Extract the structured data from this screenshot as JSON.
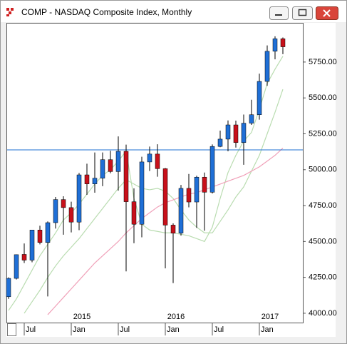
{
  "chart_data": {
    "type": "candlestick",
    "title": "COMP - NASDAQ Composite Index, Monthly",
    "categories": [
      null,
      null,
      "Jul",
      null,
      null,
      null,
      null,
      null,
      "Jan",
      null,
      null,
      null,
      null,
      null,
      "Jul",
      null,
      null,
      null,
      null,
      null,
      "Jan",
      null,
      null,
      null,
      null,
      null,
      "Jul",
      null,
      null,
      null,
      null,
      null,
      "Jan",
      null,
      null,
      null
    ],
    "years": [
      null,
      null,
      null,
      null,
      null,
      null,
      null,
      null,
      "2015",
      null,
      null,
      null,
      null,
      null,
      null,
      null,
      null,
      null,
      null,
      null,
      "2016",
      null,
      null,
      null,
      null,
      null,
      null,
      null,
      null,
      null,
      null,
      null,
      "2017",
      null,
      null,
      null
    ],
    "open": [
      4115,
      4243,
      4410,
      4370,
      4580,
      4493,
      4631,
      4792,
      4736,
      4635,
      4964,
      4901,
      4941,
      5070,
      4987,
      5128,
      4777,
      4620,
      5054,
      5109,
      5007,
      4614,
      4558,
      4870,
      4775,
      4948,
      4843,
      5162,
      5213,
      5312,
      5189,
      5324,
      5383,
      5615,
      5825,
      5912
    ],
    "high": [
      4250,
      4410,
      4486,
      4580,
      4610,
      4640,
      4810,
      4815,
      4777,
      4977,
      5042,
      5120,
      5120,
      5132,
      5232,
      5175,
      4870,
      5090,
      5161,
      5177,
      5012,
      4626,
      4894,
      4970,
      4958,
      4980,
      5176,
      5272,
      5343,
      5342,
      5384,
      5487,
      5669,
      5866,
      5929,
      5921
    ],
    "low": [
      4100,
      4235,
      4350,
      4355,
      4480,
      4117,
      4590,
      4547,
      4563,
      4579,
      4825,
      4840,
      4885,
      4975,
      4854,
      4292,
      4488,
      4529,
      4991,
      4951,
      4313,
      4210,
      4541,
      4738,
      4595,
      4575,
      4834,
      5157,
      5128,
      5154,
      5034,
      5312,
      5349,
      5584,
      5769,
      5805
    ],
    "close": [
      4243,
      4408,
      4370,
      4580,
      4493,
      4631,
      4792,
      4736,
      4635,
      4964,
      4901,
      4941,
      5070,
      4987,
      5128,
      4777,
      4620,
      5054,
      5109,
      5007,
      4614,
      4558,
      4870,
      4775,
      4948,
      4843,
      5162,
      5213,
      5312,
      5189,
      5324,
      5383,
      5615,
      5825,
      5912,
      5856
    ],
    "up_color": "#1f6fd6",
    "down_color": "#c8101a",
    "series": [
      {
        "color": "#b9dcb0",
        "values": [
          4020,
          4100,
          4200,
          4300,
          4400,
          4480,
          4560,
          4650,
          4700,
          4760,
          4830,
          4900,
          4960,
          5000,
          5060,
          5130,
          4800,
          4620,
          4580,
          4570,
          4560,
          4560,
          4550,
          4540,
          4520,
          4500,
          4600,
          4800,
          4980,
          5100,
          5200,
          5260,
          5420,
          5600,
          5700,
          5790
        ]
      },
      {
        "color": "#b9dcb0",
        "values": [
          null,
          null,
          4000,
          4080,
          4160,
          4250,
          4330,
          4400,
          4460,
          4520,
          4590,
          4660,
          4730,
          4800,
          4870,
          4930,
          4900,
          4870,
          4860,
          4870,
          4850,
          4800,
          4720,
          4650,
          4600,
          4560,
          4560,
          4640,
          4720,
          4810,
          4880,
          4990,
          5100,
          5250,
          5400,
          5560
        ]
      },
      {
        "color": "#f0a0b8",
        "values": [
          null,
          null,
          null,
          null,
          null,
          3990,
          4050,
          4110,
          4170,
          4230,
          4290,
          4350,
          4400,
          4450,
          4500,
          4560,
          4610,
          4660,
          4700,
          4740,
          4770,
          4790,
          4810,
          4830,
          4840,
          4860,
          4880,
          4900,
          4920,
          4940,
          4960,
          4990,
          5020,
          5060,
          5100,
          5150
        ]
      }
    ],
    "reference_line": {
      "value": 5138,
      "color": "#1c6fd0"
    },
    "ylim": [
      3935,
      6018
    ],
    "yticks": [
      {
        "value": 4000,
        "label": "4000.00"
      },
      {
        "value": 4250,
        "label": "4250.00"
      },
      {
        "value": 4500,
        "label": "4500.00"
      },
      {
        "value": 4750,
        "label": "4750.00"
      },
      {
        "value": 5000,
        "label": "5000.00"
      },
      {
        "value": 5250,
        "label": "5250.00"
      },
      {
        "value": 5500,
        "label": "5500.00"
      },
      {
        "value": 5750,
        "label": "5750.00"
      }
    ]
  }
}
